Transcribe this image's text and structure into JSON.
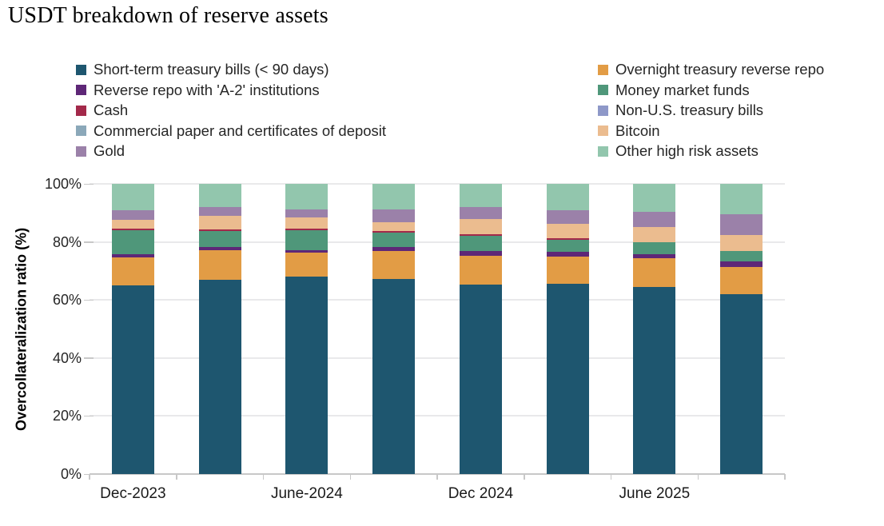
{
  "title": "USDT breakdown of reserve assets",
  "chart_data": {
    "type": "bar",
    "subtype": "stacked-percent",
    "title": "USDT breakdown of reserve assets",
    "ylabel": "Overcollateralization ratio (%)",
    "xlabel": "",
    "ylim": [
      0,
      100
    ],
    "grid": true,
    "legend_position": "top-two-columns",
    "y_ticks": [
      "0%",
      "20%",
      "40%",
      "60%",
      "80%",
      "100%"
    ],
    "y_tick_values": [
      0,
      20,
      40,
      60,
      80,
      100
    ],
    "n_bars": 8,
    "x_tick_labels": [
      "Dec-2023",
      "",
      "June-2024",
      "",
      "Dec 2024",
      "",
      "June 2025",
      ""
    ],
    "series": [
      {
        "name": "Short-term treasury bills (< 90 days)",
        "color": "#1e566f",
        "values": [
          65.0,
          67.0,
          68.0,
          67.2,
          65.4,
          65.6,
          64.6,
          62.0
        ]
      },
      {
        "name": "Overnight treasury reverse repo",
        "color": "#e29c45",
        "values": [
          9.6,
          10.2,
          8.2,
          9.6,
          9.7,
          9.2,
          9.8,
          9.4
        ]
      },
      {
        "name": "Reverse repo with 'A-2' institutions",
        "color": "#5e2777",
        "values": [
          1.1,
          1.1,
          0.9,
          1.4,
          1.9,
          1.8,
          1.4,
          1.9
        ]
      },
      {
        "name": "Money market funds",
        "color": "#4f977a",
        "values": [
          8.2,
          5.5,
          6.8,
          5.0,
          5.0,
          4.1,
          4.0,
          3.6
        ]
      },
      {
        "name": "Cash",
        "color": "#a3294a",
        "values": [
          0.7,
          0.6,
          0.6,
          0.5,
          0.6,
          0.5,
          0.0,
          0.0
        ]
      },
      {
        "name": "Non-U.S. treasury bills",
        "color": "#8e98c8",
        "values": [
          0,
          0,
          0,
          0,
          0,
          0,
          0,
          0
        ]
      },
      {
        "name": "Commercial paper and certificates of deposit",
        "color": "#8ba8b9",
        "values": [
          0,
          0,
          0,
          0,
          0,
          0,
          0,
          0
        ]
      },
      {
        "name": "Bitcoin",
        "color": "#ebbc8f",
        "values": [
          2.9,
          4.6,
          3.9,
          3.2,
          5.4,
          5.0,
          5.2,
          5.4
        ]
      },
      {
        "name": "Gold",
        "color": "#9b81a9",
        "values": [
          3.5,
          3.0,
          2.8,
          4.4,
          3.9,
          4.6,
          5.5,
          7.3
        ]
      },
      {
        "name": "Other high risk assets",
        "color": "#92c6ad",
        "values": [
          9.0,
          8.0,
          8.8,
          8.7,
          8.1,
          9.2,
          9.5,
          10.4
        ]
      }
    ]
  }
}
